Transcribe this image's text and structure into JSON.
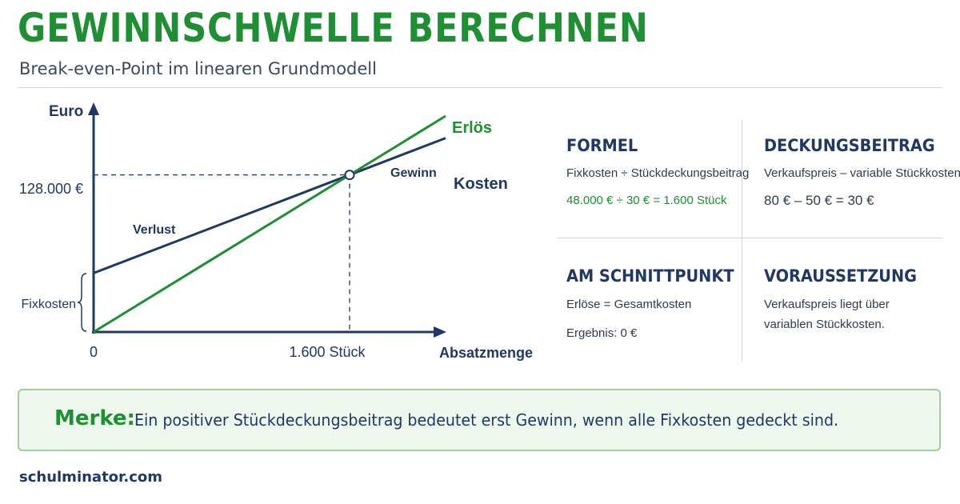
{
  "header": {
    "title": "GEWINNSCHWELLE BERECHNEN",
    "subtitle": "Break-even-Point im linearen Grundmodell"
  },
  "chart_data": {
    "type": "line",
    "y_axis_label": "Euro",
    "x_axis_label": "Absatzmenge",
    "origin_label": "0",
    "x_tick_label": "1.600 Stück",
    "y_tick_label": "128.000 €",
    "fixkosten_label": "Fixkosten",
    "xlim": [
      0,
      2200
    ],
    "ylim": [
      0,
      176000
    ],
    "break_even": {
      "x": 1600,
      "y": 128000
    },
    "series": [
      {
        "name": "Erlös",
        "x": [
          0,
          2200
        ],
        "y": [
          0,
          176000
        ],
        "color": "#1e8f32"
      },
      {
        "name": "Kosten",
        "x": [
          0,
          2200
        ],
        "y": [
          48000,
          158000
        ],
        "color": "#1f3864"
      }
    ],
    "region_labels": {
      "loss": "Verlust",
      "profit": "Gewinn"
    }
  },
  "sections": {
    "formel": {
      "heading": "FORMEL",
      "text": "Fixkosten ÷ Stückdeckungsbeitrag",
      "example": "48.000 € ÷ 30 € = 1.600 Stück"
    },
    "deckungsbeitrag": {
      "heading": "DECKUNGSBEITRAG",
      "text": "Verkaufspreis – variable Stückkosten",
      "example": "80 € – 50 € = 30 €"
    },
    "schnittpunkt": {
      "heading": "AM SCHNITTPUNKT",
      "line1": "Erlöse = Gesamtkosten",
      "line2": "Ergebnis: 0 €"
    },
    "voraussetzung": {
      "heading": "VORAUSSETZUNG",
      "line1": "Verkaufspreis liegt über",
      "line2": "variablen Stückkosten."
    }
  },
  "merke": {
    "label": "Merke:",
    "text": "Ein positiver Stückdeckungsbeitrag bedeutet erst Gewinn, wenn alle Fixkosten gedeckt sind."
  },
  "footer": {
    "text": "schulminator.com"
  }
}
